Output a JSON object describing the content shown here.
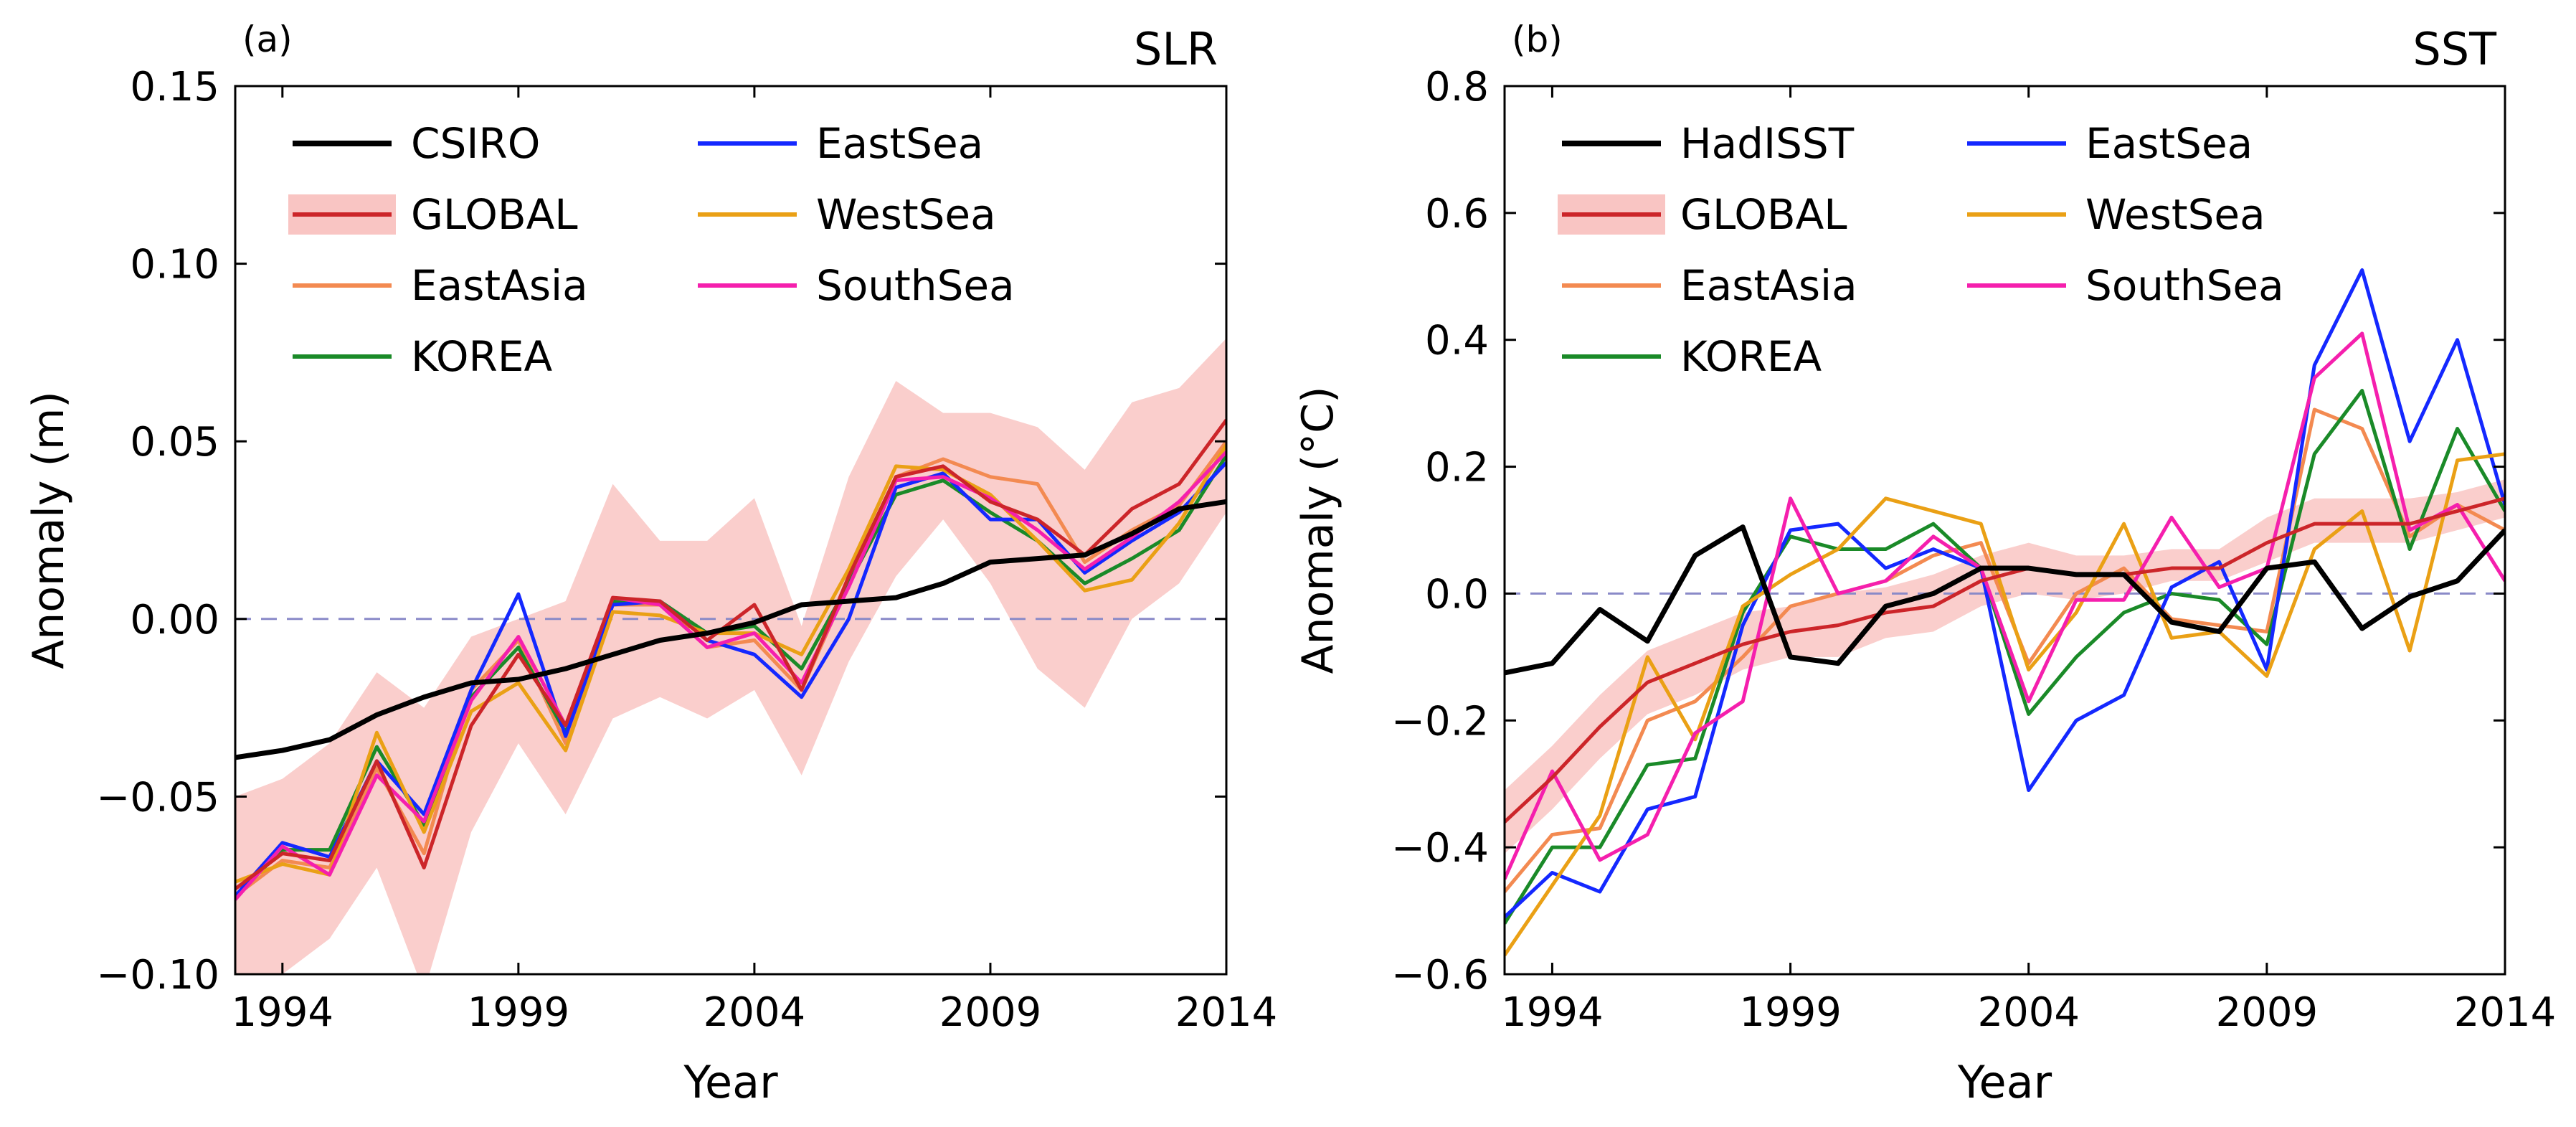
{
  "chart_data": [
    {
      "type": "line",
      "panel_label": "(a)",
      "title": "SLR",
      "xlabel": "Year",
      "ylabel": "Anomaly (m)",
      "xlim": [
        1993,
        2014
      ],
      "ylim": [
        -0.1,
        0.15
      ],
      "xticks": [
        1994,
        1999,
        2004,
        2009,
        2014
      ],
      "yticks": [
        -0.1,
        -0.05,
        0.0,
        0.05,
        0.1,
        0.15
      ],
      "ytick_labels": [
        "−0.10",
        "−0.05",
        "0.00",
        "0.05",
        "0.10",
        "0.15"
      ],
      "zero_line": true,
      "x": [
        1993,
        1994,
        1995,
        1996,
        1997,
        1998,
        1999,
        2000,
        2001,
        2002,
        2003,
        2004,
        2005,
        2006,
        2007,
        2008,
        2009,
        2010,
        2011,
        2012,
        2013,
        2014
      ],
      "global_band": {
        "upper": [
          -0.05,
          -0.045,
          -0.035,
          -0.015,
          -0.025,
          -0.005,
          0.0,
          0.005,
          0.038,
          0.022,
          0.022,
          0.034,
          -0.002,
          0.04,
          0.067,
          0.058,
          0.058,
          0.054,
          0.042,
          0.061,
          0.065,
          0.079
        ],
        "lower": [
          -0.1,
          -0.1,
          -0.09,
          -0.07,
          -0.105,
          -0.06,
          -0.035,
          -0.055,
          -0.028,
          -0.022,
          -0.028,
          -0.02,
          -0.044,
          -0.012,
          0.012,
          0.028,
          0.01,
          -0.014,
          -0.025,
          0.0,
          0.01,
          0.03
        ]
      },
      "series": [
        {
          "name": "CSIRO",
          "color": "#000000",
          "width": 7,
          "values": [
            -0.039,
            -0.037,
            -0.034,
            -0.027,
            -0.022,
            -0.018,
            -0.017,
            -0.014,
            -0.01,
            -0.006,
            -0.004,
            -0.001,
            0.004,
            0.005,
            0.006,
            0.01,
            0.016,
            0.017,
            0.018,
            0.024,
            0.031,
            0.033
          ]
        },
        {
          "name": "GLOBAL",
          "color": "#cc2529",
          "width": 5,
          "values": [
            -0.076,
            -0.066,
            -0.068,
            -0.04,
            -0.07,
            -0.03,
            -0.01,
            -0.03,
            0.006,
            0.005,
            -0.006,
            0.004,
            -0.02,
            0.012,
            0.04,
            0.043,
            0.033,
            0.028,
            0.018,
            0.031,
            0.038,
            0.056
          ]
        },
        {
          "name": "EastAsia",
          "color": "#f38a51",
          "width": 5,
          "values": [
            -0.078,
            -0.068,
            -0.07,
            -0.042,
            -0.066,
            -0.02,
            -0.006,
            -0.035,
            0.004,
            0.004,
            -0.008,
            -0.006,
            -0.02,
            0.01,
            0.04,
            0.045,
            0.04,
            0.038,
            0.016,
            0.025,
            0.032,
            0.05
          ]
        },
        {
          "name": "KOREA",
          "color": "#1a8a28",
          "width": 5,
          "values": [
            -0.078,
            -0.065,
            -0.065,
            -0.036,
            -0.058,
            -0.022,
            -0.008,
            -0.032,
            0.005,
            0.005,
            -0.004,
            -0.002,
            -0.014,
            0.01,
            0.035,
            0.039,
            0.03,
            0.022,
            0.01,
            0.017,
            0.025,
            0.046
          ]
        },
        {
          "name": "EastSea",
          "color": "#1428ff",
          "width": 5,
          "values": [
            -0.078,
            -0.063,
            -0.067,
            -0.04,
            -0.055,
            -0.02,
            0.007,
            -0.033,
            0.004,
            0.005,
            -0.006,
            -0.01,
            -0.022,
            0.0,
            0.037,
            0.041,
            0.028,
            0.028,
            0.013,
            0.022,
            0.03,
            0.044
          ]
        },
        {
          "name": "WestSea",
          "color": "#eaa015",
          "width": 5,
          "values": [
            -0.074,
            -0.069,
            -0.072,
            -0.032,
            -0.06,
            -0.026,
            -0.018,
            -0.037,
            0.002,
            0.001,
            -0.004,
            -0.004,
            -0.01,
            0.014,
            0.043,
            0.042,
            0.035,
            0.022,
            0.008,
            0.011,
            0.027,
            0.049
          ]
        },
        {
          "name": "SouthSea",
          "color": "#f51fad",
          "width": 5,
          "values": [
            -0.079,
            -0.064,
            -0.072,
            -0.044,
            -0.057,
            -0.023,
            -0.005,
            -0.03,
            0.006,
            0.004,
            -0.008,
            -0.004,
            -0.018,
            0.009,
            0.039,
            0.04,
            0.034,
            0.025,
            0.014,
            0.023,
            0.033,
            0.047
          ]
        }
      ],
      "legend": {
        "placement": "top-left",
        "columns": [
          [
            "CSIRO",
            "GLOBAL",
            "EastAsia",
            "KOREA"
          ],
          [
            "EastSea",
            "WestSea",
            "SouthSea"
          ]
        ]
      }
    },
    {
      "type": "line",
      "panel_label": "(b)",
      "title": "SST",
      "xlabel": "Year",
      "ylabel": "Anomaly (°C)",
      "xlim": [
        1993,
        2014
      ],
      "ylim": [
        -0.6,
        0.8
      ],
      "xticks": [
        1994,
        1999,
        2004,
        2009,
        2014
      ],
      "yticks": [
        -0.6,
        -0.4,
        -0.2,
        0.0,
        0.2,
        0.4,
        0.6,
        0.8
      ],
      "ytick_labels": [
        "−0.6",
        "−0.4",
        "−0.2",
        "0.0",
        "0.2",
        "0.4",
        "0.6",
        "0.8"
      ],
      "zero_line": true,
      "x": [
        1993,
        1994,
        1995,
        1996,
        1997,
        1998,
        1999,
        2000,
        2001,
        2002,
        2003,
        2004,
        2005,
        2006,
        2007,
        2008,
        2009,
        2010,
        2011,
        2012,
        2013,
        2014
      ],
      "global_band": {
        "upper": [
          -0.31,
          -0.24,
          -0.16,
          -0.09,
          -0.06,
          -0.03,
          -0.02,
          -0.0,
          0.01,
          0.03,
          0.06,
          0.08,
          0.06,
          0.06,
          0.07,
          0.07,
          0.12,
          0.15,
          0.15,
          0.15,
          0.16,
          0.18
        ],
        "lower": [
          -0.41,
          -0.34,
          -0.26,
          -0.19,
          -0.16,
          -0.12,
          -0.1,
          -0.1,
          -0.07,
          -0.06,
          -0.02,
          -0.0,
          -0.01,
          -0.0,
          0.02,
          0.02,
          0.05,
          0.08,
          0.08,
          0.08,
          0.1,
          0.12
        ]
      },
      "series": [
        {
          "name": "HadISST",
          "color": "#000000",
          "width": 7,
          "values": [
            -0.125,
            -0.11,
            -0.025,
            -0.075,
            0.06,
            0.105,
            -0.1,
            -0.11,
            -0.02,
            0.0,
            0.04,
            0.04,
            0.03,
            0.03,
            -0.045,
            -0.06,
            0.04,
            0.05,
            -0.055,
            -0.005,
            0.02,
            0.1
          ]
        },
        {
          "name": "GLOBAL",
          "color": "#cc2529",
          "width": 5,
          "values": [
            -0.36,
            -0.29,
            -0.21,
            -0.14,
            -0.11,
            -0.08,
            -0.06,
            -0.05,
            -0.03,
            -0.02,
            0.02,
            0.04,
            0.03,
            0.03,
            0.04,
            0.04,
            0.08,
            0.11,
            0.11,
            0.11,
            0.13,
            0.15
          ]
        },
        {
          "name": "EastAsia",
          "color": "#f38a51",
          "width": 5,
          "values": [
            -0.47,
            -0.38,
            -0.37,
            -0.2,
            -0.17,
            -0.1,
            -0.02,
            0.0,
            0.02,
            0.06,
            0.08,
            -0.11,
            0.0,
            0.04,
            -0.04,
            -0.05,
            -0.06,
            0.29,
            0.26,
            0.09,
            0.14,
            0.1
          ]
        },
        {
          "name": "KOREA",
          "color": "#1a8a28",
          "width": 5,
          "values": [
            -0.52,
            -0.4,
            -0.4,
            -0.27,
            -0.26,
            -0.03,
            0.09,
            0.07,
            0.07,
            0.11,
            0.04,
            -0.19,
            -0.1,
            -0.03,
            0.0,
            -0.01,
            -0.08,
            0.22,
            0.32,
            0.07,
            0.26,
            0.13
          ]
        },
        {
          "name": "EastSea",
          "color": "#1428ff",
          "width": 5,
          "values": [
            -0.51,
            -0.44,
            -0.47,
            -0.34,
            -0.32,
            -0.05,
            0.1,
            0.11,
            0.04,
            0.07,
            0.04,
            -0.31,
            -0.2,
            -0.16,
            0.01,
            0.05,
            -0.12,
            0.36,
            0.51,
            0.24,
            0.4,
            0.14
          ]
        },
        {
          "name": "WestSea",
          "color": "#eaa015",
          "width": 5,
          "values": [
            -0.57,
            -0.46,
            -0.35,
            -0.1,
            -0.23,
            -0.02,
            0.03,
            0.07,
            0.15,
            0.13,
            0.11,
            -0.12,
            -0.03,
            0.11,
            -0.07,
            -0.06,
            -0.13,
            0.07,
            0.13,
            -0.09,
            0.21,
            0.22
          ]
        },
        {
          "name": "SouthSea",
          "color": "#f51fad",
          "width": 5,
          "values": [
            -0.45,
            -0.28,
            -0.42,
            -0.38,
            -0.22,
            -0.17,
            0.15,
            0.0,
            0.02,
            0.09,
            0.04,
            -0.17,
            -0.01,
            -0.01,
            0.12,
            0.01,
            0.04,
            0.34,
            0.41,
            0.1,
            0.14,
            0.02
          ]
        }
      ],
      "legend": {
        "placement": "top-left",
        "columns": [
          [
            "HadISST",
            "GLOBAL",
            "EastAsia",
            "KOREA"
          ],
          [
            "EastSea",
            "WestSea",
            "SouthSea"
          ]
        ]
      }
    }
  ]
}
